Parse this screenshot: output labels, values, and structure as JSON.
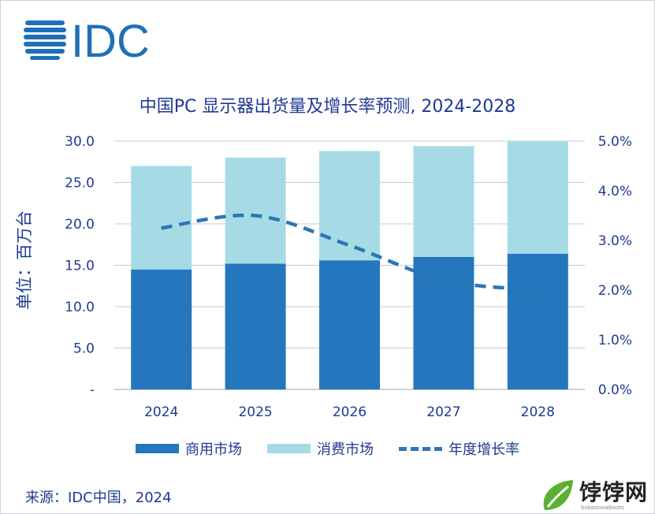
{
  "logo": {
    "text": "IDC",
    "color": "#1f6fb8"
  },
  "ylabel": "单位：百万台",
  "chart_data": {
    "type": "bar",
    "title": "中国PC 显示器出货量及增长率预测, 2024-2028",
    "categories": [
      "2024",
      "2025",
      "2026",
      "2027",
      "2028"
    ],
    "series": [
      {
        "name": "商用市场",
        "type": "bar",
        "stacked": true,
        "color": "#2477bd",
        "values": [
          14.5,
          15.2,
          15.6,
          16.0,
          16.4
        ]
      },
      {
        "name": "消费市场",
        "type": "bar",
        "stacked": true,
        "color": "#a6dbe6",
        "values": [
          12.5,
          12.8,
          13.2,
          13.4,
          13.6
        ]
      },
      {
        "name": "年度增长率",
        "type": "line",
        "axis": "right",
        "style": "dashed",
        "color": "#2e75b6",
        "values": [
          3.25,
          3.5,
          2.9,
          2.2,
          2.0
        ]
      }
    ],
    "y_left": {
      "ylim": [
        0,
        30
      ],
      "ticks": [
        "-",
        "5.0",
        "10.0",
        "15.0",
        "20.0",
        "25.0",
        "30.0"
      ],
      "tick_values": [
        0,
        5,
        10,
        15,
        20,
        25,
        30
      ]
    },
    "y_right": {
      "ylim": [
        0,
        5
      ],
      "ticks": [
        "0.0%",
        "1.0%",
        "2.0%",
        "3.0%",
        "4.0%",
        "5.0%"
      ],
      "tick_values": [
        0,
        1,
        2,
        3,
        4,
        5
      ]
    },
    "grid": true,
    "legend_position": "bottom"
  },
  "source": "来源：IDC中国，2024",
  "watermark": {
    "text": "饽饽网",
    "sub": "bobosnowboots"
  }
}
